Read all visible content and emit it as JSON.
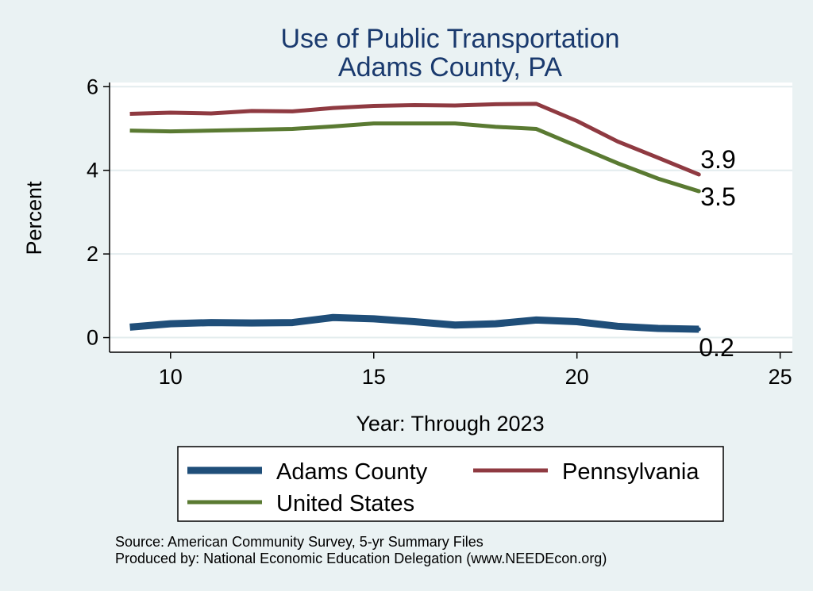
{
  "chart_data": {
    "type": "line",
    "title": [
      "Use of Public Transportation",
      "Adams County, PA"
    ],
    "xlabel": "Year: Through 2023",
    "ylabel": "Percent",
    "xlim": [
      8.5,
      25.3
    ],
    "ylim": [
      -0.35,
      6.1
    ],
    "xticks": [
      10,
      15,
      20,
      25
    ],
    "yticks": [
      0,
      2,
      4,
      6
    ],
    "grid": true,
    "legend_position": "bottom",
    "x": [
      9,
      10,
      11,
      12,
      13,
      14,
      15,
      16,
      17,
      18,
      19,
      20,
      21,
      22,
      23
    ],
    "series": [
      {
        "name": "Adams County",
        "color": "#1f4e79",
        "values": [
          0.25,
          0.33,
          0.36,
          0.35,
          0.36,
          0.48,
          0.45,
          0.38,
          0.3,
          0.33,
          0.42,
          0.38,
          0.27,
          0.22,
          0.2
        ],
        "end_label": "0.2"
      },
      {
        "name": "Pennsylvania",
        "color": "#8f3a41",
        "values": [
          5.35,
          5.38,
          5.36,
          5.42,
          5.41,
          5.49,
          5.54,
          5.56,
          5.55,
          5.58,
          5.59,
          5.18,
          4.69,
          4.3,
          3.9
        ],
        "end_label": "3.9"
      },
      {
        "name": "United States",
        "color": "#5a7a32",
        "values": [
          4.95,
          4.93,
          4.95,
          4.97,
          4.99,
          5.05,
          5.12,
          5.12,
          5.12,
          5.04,
          4.99,
          4.58,
          4.17,
          3.8,
          3.5
        ],
        "end_label": "3.5"
      }
    ],
    "notes": [
      "Source: American Community Survey, 5-yr Summary Files",
      "Produced by: National Economic Education Delegation (www.NEEDEcon.org)"
    ]
  }
}
